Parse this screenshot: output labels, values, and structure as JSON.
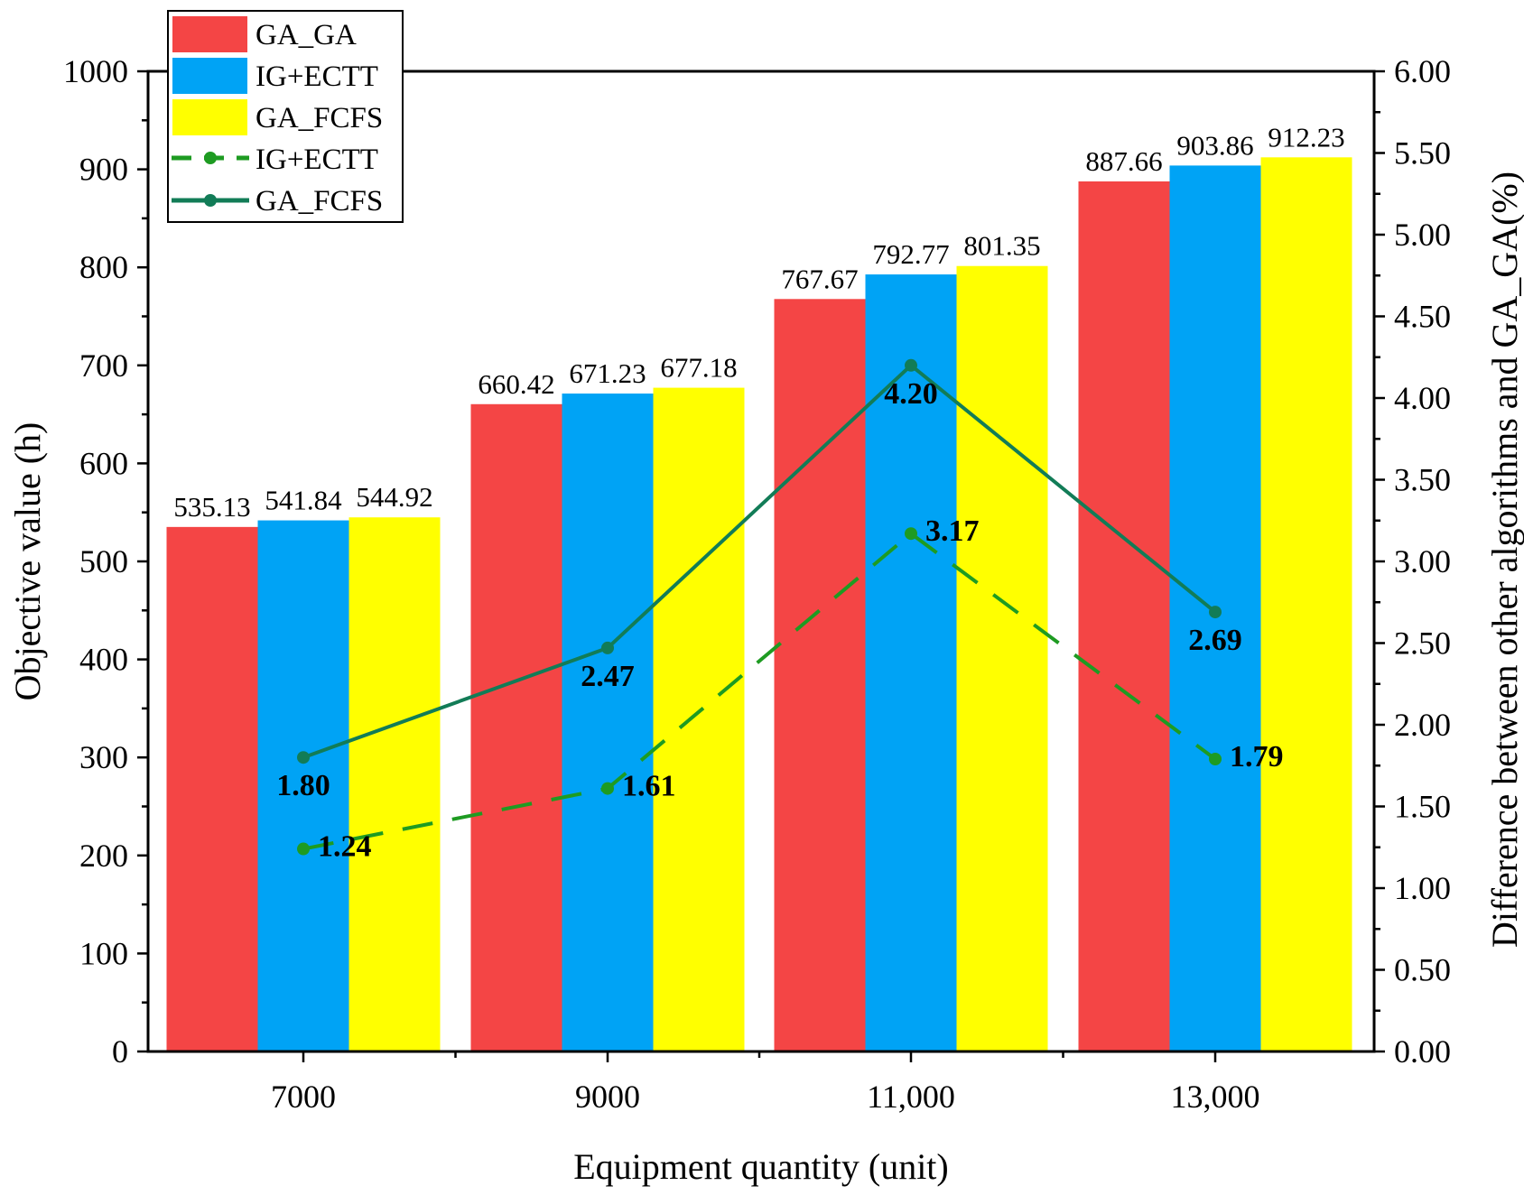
{
  "chart_data": {
    "type": "bar",
    "categories": [
      "7000",
      "9000",
      "11,000",
      "13,000"
    ],
    "xlabel": "Equipment quantity (unit)",
    "ylabel": "Objective value (h)",
    "y2label": "Difference between other algorithms and GA_GA(%)",
    "ylim": [
      0,
      1000
    ],
    "y2lim": [
      0,
      6
    ],
    "y_ticks": [
      "0",
      "100",
      "200",
      "300",
      "400",
      "500",
      "600",
      "700",
      "800",
      "900",
      "1000"
    ],
    "y2_ticks": [
      "0.00",
      "0.50",
      "1.00",
      "1.50",
      "2.00",
      "2.50",
      "3.00",
      "3.50",
      "4.00",
      "4.50",
      "5.00",
      "5.50",
      "6.00"
    ],
    "legend_position": "top-left",
    "series": [
      {
        "name": "GA_GA",
        "kind": "bar",
        "color": "#f44545",
        "values": [
          535.13,
          660.42,
          767.67,
          887.66
        ],
        "labels": [
          "535.13",
          "660.42",
          "767.67",
          "887.66"
        ]
      },
      {
        "name": "IG+ECTT",
        "kind": "bar",
        "color": "#00a3f5",
        "values": [
          541.84,
          671.23,
          792.77,
          903.86
        ],
        "labels": [
          "541.84",
          "671.23",
          "792.77",
          "903.86"
        ]
      },
      {
        "name": "GA_FCFS",
        "kind": "bar",
        "color": "#ffff00",
        "values": [
          544.92,
          677.18,
          801.35,
          912.23
        ],
        "labels": [
          "544.92",
          "677.18",
          "801.35",
          "912.23"
        ]
      }
    ],
    "line_series": [
      {
        "name": "IG+ECTT",
        "kind": "line",
        "style": "dashed",
        "axis": "right",
        "color": "#1e9b22",
        "values": [
          1.24,
          1.61,
          3.17,
          1.79
        ],
        "labels": [
          "1.24",
          "1.61",
          "3.17",
          "1.79"
        ]
      },
      {
        "name": "GA_FCFS",
        "kind": "line",
        "style": "solid",
        "axis": "right",
        "color": "#127c57",
        "values": [
          1.8,
          2.47,
          4.2,
          2.69
        ],
        "labels": [
          "1.80",
          "2.47",
          "4.20",
          "2.69"
        ]
      }
    ]
  }
}
